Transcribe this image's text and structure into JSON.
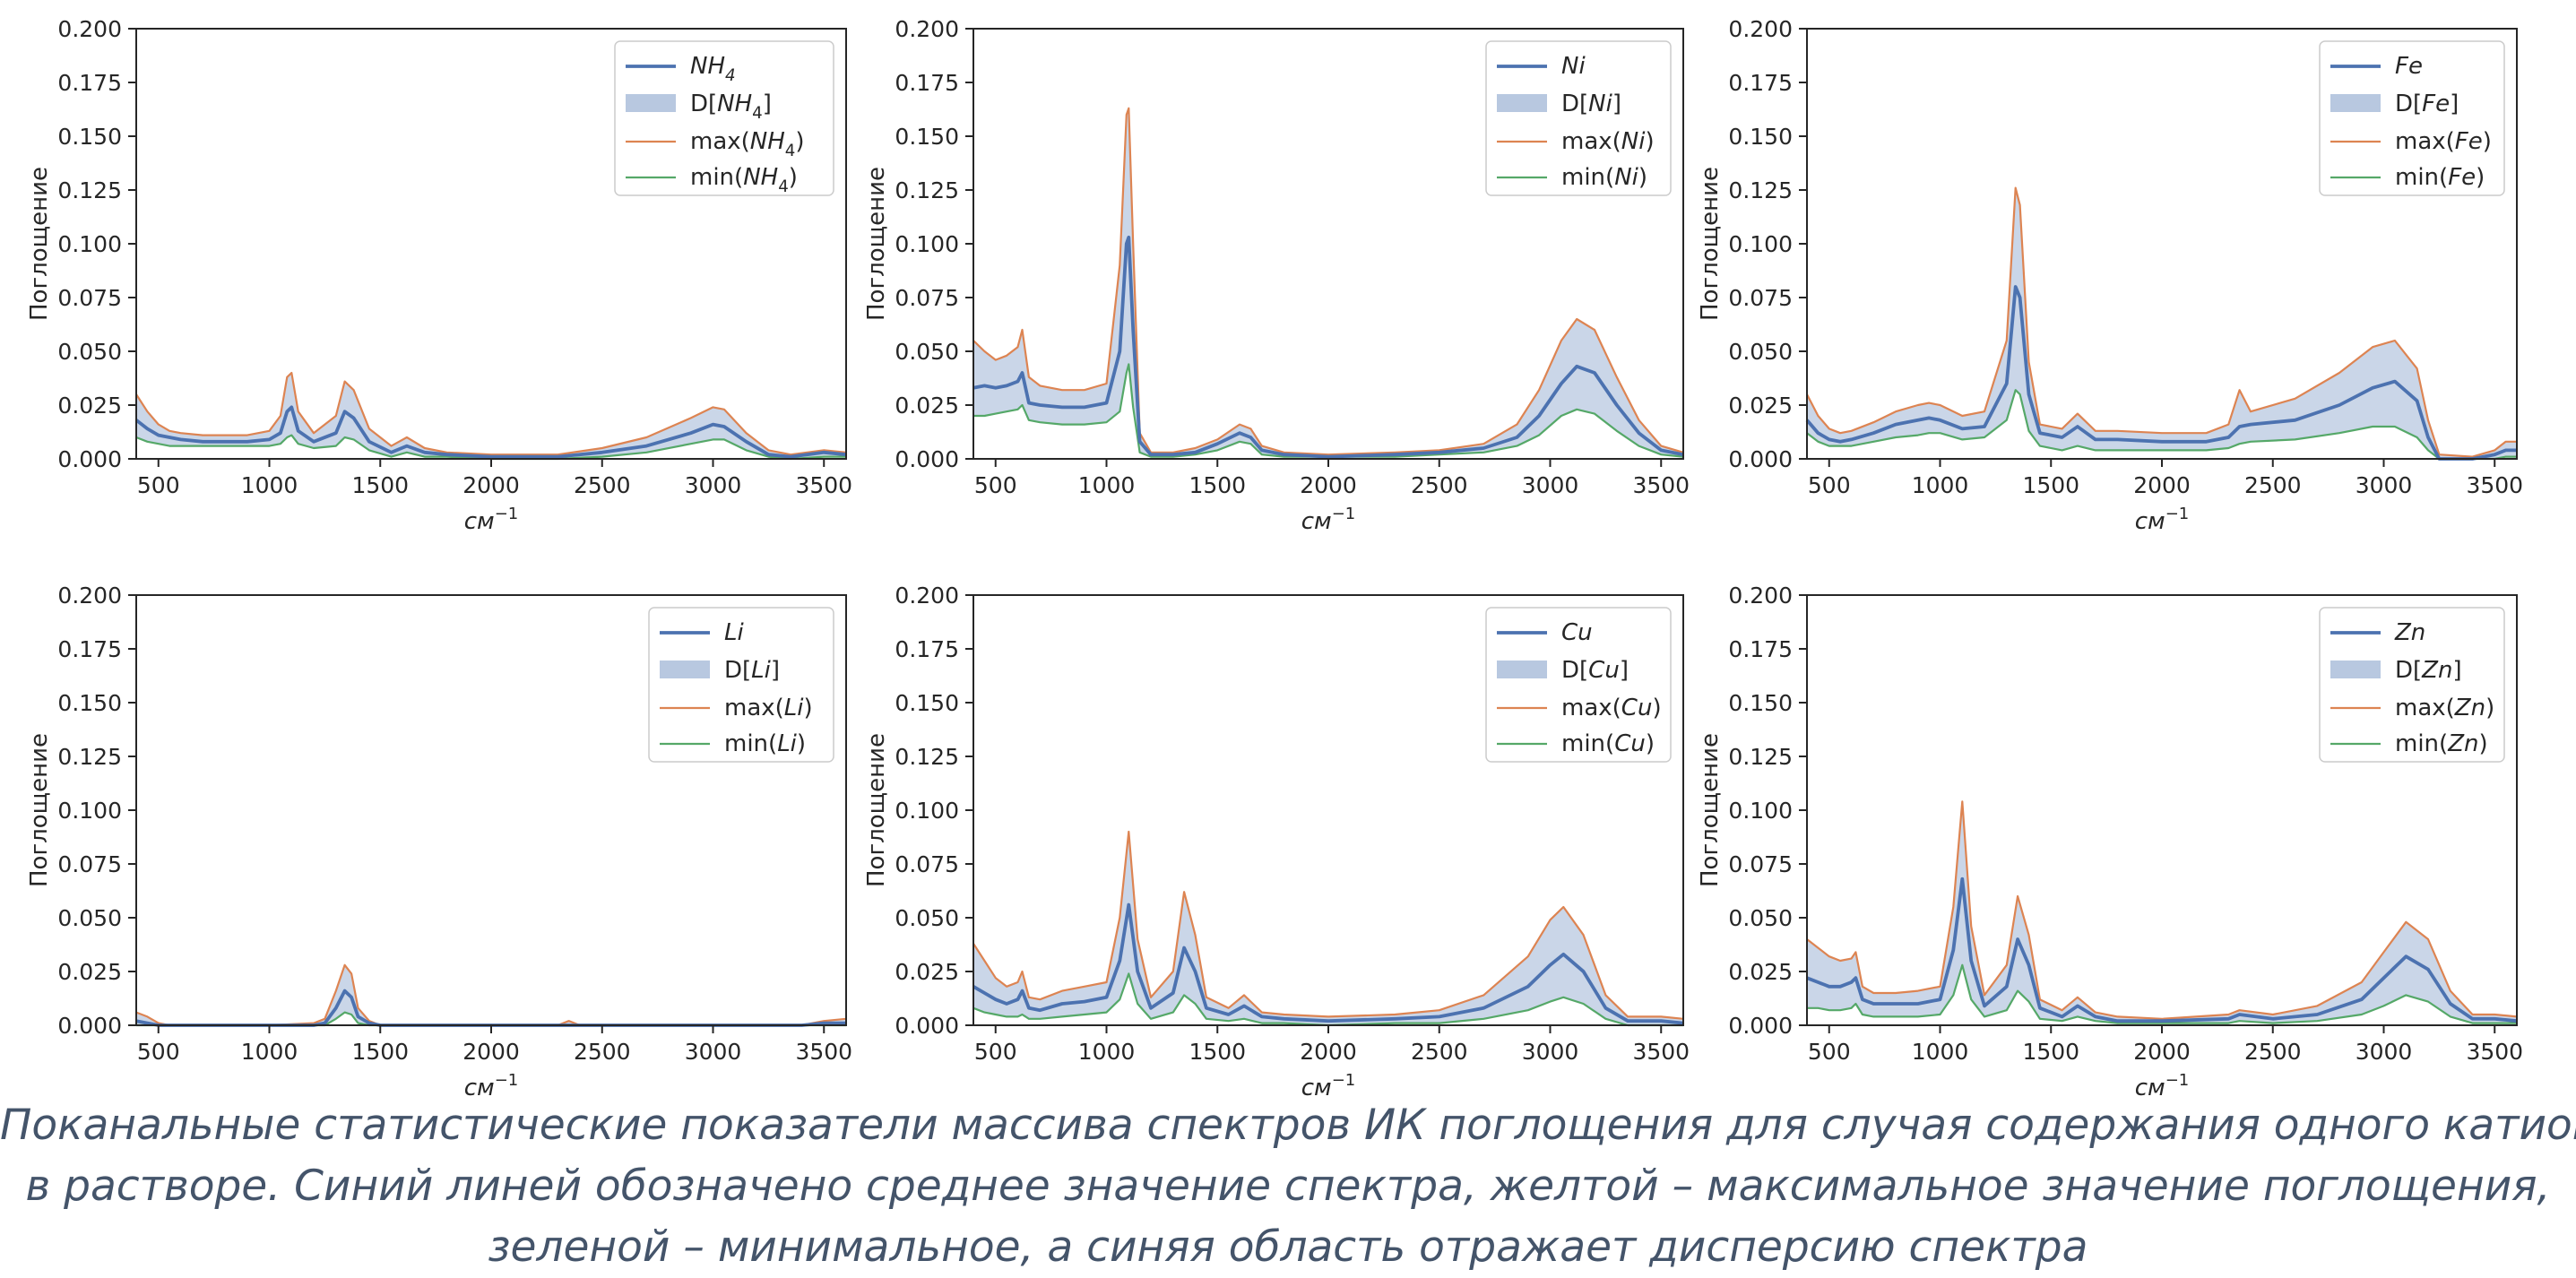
{
  "colors": {
    "mean": "#4c72b0",
    "band": "#b8c8e0",
    "max": "#dd8452",
    "min": "#55a868",
    "caption": "#44546a"
  },
  "caption_lines": [
    "Поканальные статистические показатели массива спектров ИК поглощения для случая содержания одного катиона",
    "в растворе. Синий линей обозначено среднее значение спектра, желтой – максимальное значение поглощения,",
    "зеленой – минимальное, а синяя область отражает дисперсию спектра"
  ],
  "chart_data": [
    {
      "type": "line",
      "ion": "NH",
      "sub": "4",
      "ylabel": "Поглощение",
      "xlabel": "см",
      "xlabel_sup": "−1",
      "xlim": [
        400,
        3600
      ],
      "ylim": [
        0,
        0.2
      ],
      "xticks": [
        "500",
        "1000",
        "1500",
        "2000",
        "2500",
        "3000",
        "3500"
      ],
      "yticks": [
        "0.000",
        "0.025",
        "0.050",
        "0.075",
        "0.100",
        "0.125",
        "0.150",
        "0.175",
        "0.200"
      ],
      "legend": [
        "mean",
        "band",
        "max",
        "min"
      ],
      "x": [
        400,
        450,
        500,
        550,
        600,
        700,
        800,
        900,
        1000,
        1050,
        1080,
        1100,
        1130,
        1200,
        1300,
        1340,
        1380,
        1450,
        1550,
        1620,
        1700,
        1800,
        2000,
        2300,
        2500,
        2700,
        2900,
        3000,
        3050,
        3150,
        3250,
        3350,
        3500,
        3600
      ],
      "mean": [
        0.018,
        0.014,
        0.011,
        0.01,
        0.009,
        0.008,
        0.008,
        0.008,
        0.009,
        0.012,
        0.022,
        0.024,
        0.013,
        0.008,
        0.012,
        0.022,
        0.019,
        0.008,
        0.003,
        0.006,
        0.003,
        0.002,
        0.001,
        0.001,
        0.003,
        0.006,
        0.012,
        0.016,
        0.015,
        0.008,
        0.002,
        0.001,
        0.003,
        0.002
      ],
      "max": [
        0.03,
        0.022,
        0.016,
        0.013,
        0.012,
        0.011,
        0.011,
        0.011,
        0.013,
        0.02,
        0.038,
        0.04,
        0.022,
        0.012,
        0.02,
        0.036,
        0.032,
        0.014,
        0.006,
        0.01,
        0.005,
        0.003,
        0.002,
        0.002,
        0.005,
        0.01,
        0.019,
        0.024,
        0.023,
        0.012,
        0.004,
        0.002,
        0.004,
        0.003
      ],
      "min": [
        0.01,
        0.008,
        0.007,
        0.006,
        0.006,
        0.006,
        0.006,
        0.006,
        0.006,
        0.007,
        0.01,
        0.011,
        0.007,
        0.005,
        0.006,
        0.01,
        0.009,
        0.004,
        0.001,
        0.003,
        0.001,
        0.001,
        0,
        0,
        0.001,
        0.003,
        0.007,
        0.009,
        0.009,
        0.004,
        0.001,
        0,
        0.001,
        0.001
      ]
    },
    {
      "type": "line",
      "ion": "Ni",
      "sub": "",
      "ylabel": "Поглощение",
      "xlabel": "см",
      "xlabel_sup": "−1",
      "xlim": [
        400,
        3600
      ],
      "ylim": [
        0,
        0.2
      ],
      "xticks": [
        "500",
        "1000",
        "1500",
        "2000",
        "2500",
        "3000",
        "3500"
      ],
      "yticks": [
        "0.000",
        "0.025",
        "0.050",
        "0.075",
        "0.100",
        "0.125",
        "0.150",
        "0.175",
        "0.200"
      ],
      "legend": [
        "mean",
        "band",
        "max",
        "min"
      ],
      "x": [
        400,
        450,
        500,
        550,
        600,
        620,
        650,
        700,
        800,
        900,
        1000,
        1060,
        1090,
        1100,
        1120,
        1150,
        1200,
        1300,
        1400,
        1500,
        1600,
        1650,
        1700,
        1800,
        2000,
        2300,
        2500,
        2700,
        2850,
        2950,
        3050,
        3120,
        3200,
        3300,
        3400,
        3500,
        3600
      ],
      "mean": [
        0.033,
        0.034,
        0.033,
        0.034,
        0.036,
        0.04,
        0.026,
        0.025,
        0.024,
        0.024,
        0.026,
        0.05,
        0.1,
        0.103,
        0.06,
        0.008,
        0.002,
        0.002,
        0.003,
        0.007,
        0.012,
        0.01,
        0.004,
        0.002,
        0.001,
        0.002,
        0.003,
        0.005,
        0.01,
        0.02,
        0.035,
        0.043,
        0.04,
        0.025,
        0.012,
        0.004,
        0.002
      ],
      "max": [
        0.055,
        0.05,
        0.046,
        0.048,
        0.052,
        0.06,
        0.038,
        0.034,
        0.032,
        0.032,
        0.035,
        0.09,
        0.16,
        0.163,
        0.1,
        0.012,
        0.003,
        0.003,
        0.005,
        0.009,
        0.016,
        0.014,
        0.006,
        0.003,
        0.002,
        0.003,
        0.004,
        0.007,
        0.016,
        0.032,
        0.055,
        0.065,
        0.06,
        0.038,
        0.018,
        0.006,
        0.003
      ],
      "min": [
        0.02,
        0.02,
        0.021,
        0.022,
        0.023,
        0.025,
        0.018,
        0.017,
        0.016,
        0.016,
        0.017,
        0.022,
        0.04,
        0.044,
        0.024,
        0.003,
        0.001,
        0.001,
        0.002,
        0.004,
        0.008,
        0.007,
        0.002,
        0.001,
        0.001,
        0.001,
        0.002,
        0.003,
        0.006,
        0.011,
        0.02,
        0.023,
        0.021,
        0.013,
        0.006,
        0.002,
        0.001
      ]
    },
    {
      "type": "line",
      "ion": "Fe",
      "sub": "",
      "ylabel": "Поглощение",
      "xlabel": "см",
      "xlabel_sup": "−1",
      "xlim": [
        400,
        3600
      ],
      "ylim": [
        0,
        0.2
      ],
      "xticks": [
        "500",
        "1000",
        "1500",
        "2000",
        "2500",
        "3000",
        "3500"
      ],
      "yticks": [
        "0.000",
        "0.025",
        "0.050",
        "0.075",
        "0.100",
        "0.125",
        "0.150",
        "0.175",
        "0.200"
      ],
      "legend": [
        "mean",
        "band",
        "max",
        "min"
      ],
      "x": [
        400,
        450,
        500,
        550,
        600,
        700,
        800,
        900,
        950,
        1000,
        1100,
        1200,
        1300,
        1340,
        1360,
        1400,
        1450,
        1550,
        1620,
        1700,
        1800,
        2000,
        2200,
        2300,
        2350,
        2400,
        2600,
        2800,
        2950,
        3050,
        3150,
        3200,
        3250,
        3400,
        3500,
        3550,
        3600
      ],
      "mean": [
        0.018,
        0.012,
        0.009,
        0.008,
        0.009,
        0.012,
        0.016,
        0.018,
        0.019,
        0.018,
        0.014,
        0.015,
        0.035,
        0.08,
        0.075,
        0.03,
        0.012,
        0.01,
        0.015,
        0.009,
        0.009,
        0.008,
        0.008,
        0.01,
        0.015,
        0.016,
        0.018,
        0.025,
        0.033,
        0.036,
        0.027,
        0.01,
        0,
        0,
        0.002,
        0.004,
        0.004
      ],
      "max": [
        0.03,
        0.02,
        0.014,
        0.012,
        0.013,
        0.017,
        0.022,
        0.025,
        0.026,
        0.025,
        0.02,
        0.022,
        0.055,
        0.126,
        0.118,
        0.045,
        0.016,
        0.014,
        0.021,
        0.013,
        0.013,
        0.012,
        0.012,
        0.016,
        0.032,
        0.022,
        0.028,
        0.04,
        0.052,
        0.055,
        0.042,
        0.018,
        0.002,
        0.001,
        0.004,
        0.008,
        0.008
      ],
      "min": [
        0.012,
        0.008,
        0.006,
        0.006,
        0.006,
        0.008,
        0.01,
        0.011,
        0.012,
        0.012,
        0.009,
        0.01,
        0.018,
        0.032,
        0.03,
        0.013,
        0.006,
        0.004,
        0.006,
        0.004,
        0.004,
        0.004,
        0.004,
        0.005,
        0.007,
        0.008,
        0.009,
        0.012,
        0.015,
        0.015,
        0.01,
        0.004,
        0,
        0,
        0,
        0.001,
        0.001
      ]
    },
    {
      "type": "line",
      "ion": "Li",
      "sub": "",
      "ylabel": "Поглощение",
      "xlabel": "см",
      "xlabel_sup": "−1",
      "xlim": [
        400,
        3600
      ],
      "ylim": [
        0,
        0.2
      ],
      "xticks": [
        "500",
        "1000",
        "1500",
        "2000",
        "2500",
        "3000",
        "3500"
      ],
      "yticks": [
        "0.000",
        "0.025",
        "0.050",
        "0.075",
        "0.100",
        "0.125",
        "0.150",
        "0.175",
        "0.200"
      ],
      "legend": [
        "mean",
        "band",
        "max",
        "min"
      ],
      "x": [
        400,
        450,
        500,
        550,
        1000,
        1200,
        1250,
        1300,
        1340,
        1370,
        1400,
        1450,
        1500,
        2300,
        2350,
        2400,
        3400,
        3500,
        3600
      ],
      "mean": [
        0.002,
        0.001,
        0,
        0,
        0,
        0,
        0.001,
        0.008,
        0.016,
        0.013,
        0.004,
        0.001,
        0,
        0,
        0,
        0,
        0,
        0.001,
        0.001
      ],
      "max": [
        0.006,
        0.004,
        0.001,
        0,
        0,
        0.001,
        0.003,
        0.016,
        0.028,
        0.024,
        0.008,
        0.002,
        0,
        0,
        0.002,
        0,
        0,
        0.002,
        0.003
      ],
      "min": [
        0,
        0,
        0,
        0,
        0,
        0,
        0,
        0.003,
        0.006,
        0.005,
        0.001,
        0,
        0,
        0,
        0,
        0,
        0,
        0,
        0
      ]
    },
    {
      "type": "line",
      "ion": "Cu",
      "sub": "",
      "ylabel": "Поглощение",
      "xlabel": "см",
      "xlabel_sup": "−1",
      "xlim": [
        400,
        3600
      ],
      "ylim": [
        0,
        0.2
      ],
      "xticks": [
        "500",
        "1000",
        "1500",
        "2000",
        "2500",
        "3000",
        "3500"
      ],
      "yticks": [
        "0.000",
        "0.025",
        "0.050",
        "0.075",
        "0.100",
        "0.125",
        "0.150",
        "0.175",
        "0.200"
      ],
      "legend": [
        "mean",
        "band",
        "max",
        "min"
      ],
      "x": [
        400,
        450,
        500,
        550,
        600,
        620,
        650,
        700,
        800,
        900,
        1000,
        1060,
        1100,
        1140,
        1200,
        1300,
        1350,
        1400,
        1450,
        1550,
        1620,
        1700,
        1800,
        2000,
        2300,
        2500,
        2700,
        2900,
        3000,
        3060,
        3150,
        3250,
        3350,
        3500,
        3600
      ],
      "mean": [
        0.018,
        0.015,
        0.012,
        0.01,
        0.012,
        0.016,
        0.008,
        0.007,
        0.01,
        0.011,
        0.013,
        0.03,
        0.056,
        0.025,
        0.008,
        0.015,
        0.036,
        0.025,
        0.008,
        0.005,
        0.009,
        0.004,
        0.003,
        0.002,
        0.003,
        0.004,
        0.008,
        0.018,
        0.028,
        0.033,
        0.025,
        0.008,
        0.002,
        0.002,
        0.001
      ],
      "max": [
        0.038,
        0.03,
        0.022,
        0.018,
        0.02,
        0.025,
        0.013,
        0.012,
        0.016,
        0.018,
        0.02,
        0.05,
        0.09,
        0.04,
        0.013,
        0.025,
        0.062,
        0.042,
        0.013,
        0.008,
        0.014,
        0.006,
        0.005,
        0.004,
        0.005,
        0.007,
        0.014,
        0.032,
        0.049,
        0.055,
        0.042,
        0.014,
        0.004,
        0.004,
        0.003
      ],
      "min": [
        0.008,
        0.006,
        0.005,
        0.004,
        0.004,
        0.005,
        0.003,
        0.003,
        0.004,
        0.005,
        0.006,
        0.012,
        0.024,
        0.01,
        0.003,
        0.006,
        0.014,
        0.01,
        0.003,
        0.002,
        0.003,
        0.001,
        0.001,
        0,
        0.001,
        0.001,
        0.003,
        0.007,
        0.011,
        0.013,
        0.01,
        0.003,
        0,
        0,
        0
      ]
    },
    {
      "type": "line",
      "ion": "Zn",
      "sub": "",
      "ylabel": "Поглощение",
      "xlabel": "см",
      "xlabel_sup": "−1",
      "xlim": [
        400,
        3600
      ],
      "ylim": [
        0,
        0.2
      ],
      "xticks": [
        "500",
        "1000",
        "1500",
        "2000",
        "2500",
        "3000",
        "3500"
      ],
      "yticks": [
        "0.000",
        "0.025",
        "0.050",
        "0.075",
        "0.100",
        "0.125",
        "0.150",
        "0.175",
        "0.200"
      ],
      "legend": [
        "mean",
        "band",
        "max",
        "min"
      ],
      "x": [
        400,
        450,
        500,
        550,
        600,
        620,
        650,
        700,
        800,
        900,
        1000,
        1060,
        1100,
        1140,
        1200,
        1300,
        1350,
        1400,
        1450,
        1550,
        1620,
        1700,
        1800,
        2000,
        2300,
        2350,
        2500,
        2700,
        2900,
        3000,
        3100,
        3200,
        3300,
        3400,
        3500,
        3600
      ],
      "mean": [
        0.022,
        0.02,
        0.018,
        0.018,
        0.02,
        0.022,
        0.012,
        0.01,
        0.01,
        0.01,
        0.012,
        0.035,
        0.068,
        0.03,
        0.009,
        0.018,
        0.04,
        0.028,
        0.008,
        0.004,
        0.009,
        0.004,
        0.002,
        0.002,
        0.003,
        0.005,
        0.003,
        0.005,
        0.012,
        0.022,
        0.032,
        0.026,
        0.01,
        0.003,
        0.003,
        0.002
      ],
      "max": [
        0.04,
        0.036,
        0.032,
        0.03,
        0.031,
        0.034,
        0.018,
        0.015,
        0.015,
        0.016,
        0.018,
        0.055,
        0.104,
        0.046,
        0.014,
        0.028,
        0.06,
        0.042,
        0.012,
        0.007,
        0.013,
        0.006,
        0.004,
        0.003,
        0.005,
        0.007,
        0.005,
        0.009,
        0.02,
        0.034,
        0.048,
        0.04,
        0.016,
        0.005,
        0.005,
        0.004
      ],
      "min": [
        0.008,
        0.008,
        0.007,
        0.007,
        0.008,
        0.01,
        0.005,
        0.004,
        0.004,
        0.004,
        0.005,
        0.014,
        0.028,
        0.012,
        0.004,
        0.007,
        0.016,
        0.011,
        0.003,
        0.002,
        0.004,
        0.002,
        0.001,
        0.001,
        0.001,
        0.002,
        0.001,
        0.002,
        0.005,
        0.009,
        0.014,
        0.011,
        0.004,
        0.001,
        0.001,
        0.001
      ]
    }
  ]
}
